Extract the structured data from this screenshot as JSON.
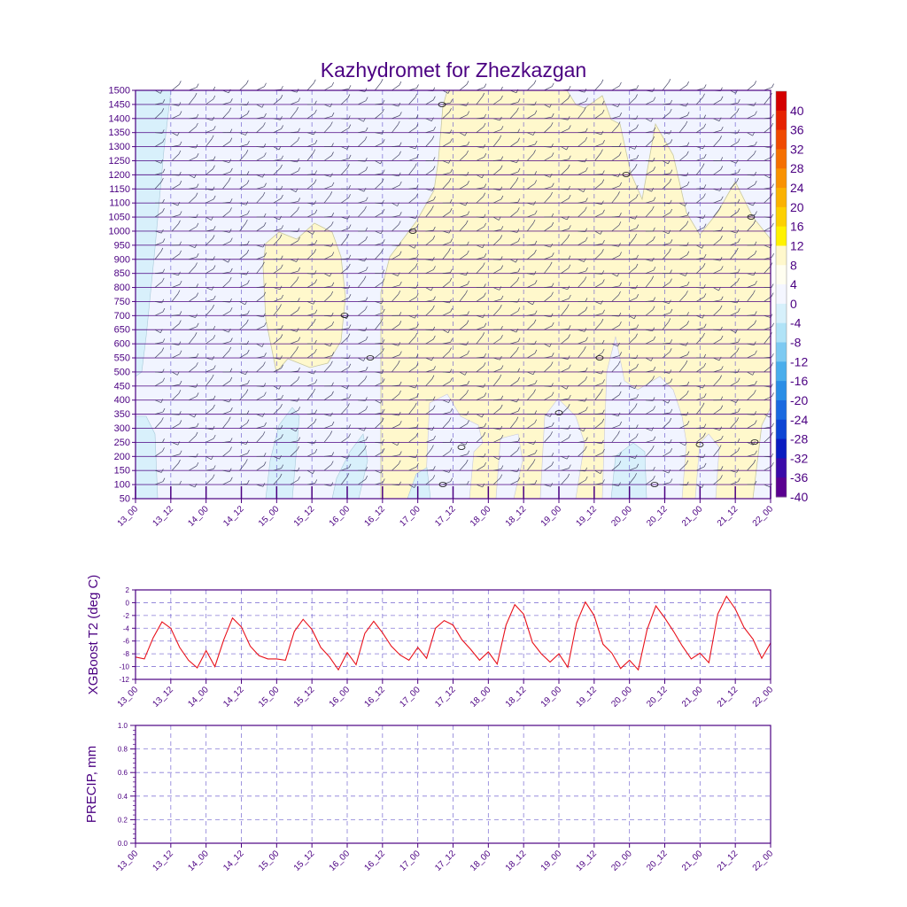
{
  "title": "Kazhydromet for Zhezkazgan",
  "colors": {
    "axis": "#4b0082",
    "label": "#4b0082",
    "grid": "#6a5acd",
    "t2_line": "#e8101a",
    "warm_fill": "#fff8cc",
    "cold_fill": "#f1f4ff",
    "colder_fill": "#d8f0fb",
    "coldest_fill": "#bfe6f7"
  },
  "colorbar": {
    "labels": [
      "40",
      "36",
      "32",
      "28",
      "24",
      "20",
      "16",
      "12",
      "8",
      "4",
      "0",
      "-4",
      "-8",
      "-12",
      "-16",
      "-20",
      "-24",
      "-28",
      "-32",
      "-36",
      "-40"
    ],
    "colors": [
      "#d40000",
      "#e62200",
      "#f04a00",
      "#f57000",
      "#f99200",
      "#fbb200",
      "#fdd000",
      "#fff200",
      "#fff8cc",
      "#fffef0",
      "#f4f6ff",
      "#d6f0fb",
      "#b0e3f7",
      "#7dcaf2",
      "#4aaeec",
      "#2a8ee6",
      "#1a6ae0",
      "#0d45d4",
      "#0a1cc0",
      "#3a0aa8",
      "#5a0090"
    ]
  },
  "time_labels": [
    "13_00",
    "13_12",
    "14_00",
    "14_12",
    "15_00",
    "15_12",
    "16_00",
    "16_12",
    "17_00",
    "17_12",
    "18_00",
    "18_12",
    "19_00",
    "19_12",
    "20_00",
    "20_12",
    "21_00",
    "21_12",
    "22_00"
  ],
  "chart_data": [
    {
      "type": "heatmap",
      "title": "Kazhydromet for Zhezkazgan",
      "ylabel": "",
      "x": [
        "13_00",
        "13_12",
        "14_00",
        "14_12",
        "15_00",
        "15_12",
        "16_00",
        "16_12",
        "17_00",
        "17_12",
        "18_00",
        "18_12",
        "19_00",
        "19_12",
        "20_00",
        "20_12",
        "21_00",
        "21_12",
        "22_00"
      ],
      "y_levels": [
        "1500",
        "1450",
        "1400",
        "1350",
        "1300",
        "1250",
        "1200",
        "1150",
        "1100",
        "1050",
        "1000",
        "950",
        "900",
        "850",
        "800",
        "750",
        "700",
        "650",
        "600",
        "550",
        "500",
        "450",
        "400",
        "350",
        "300",
        "250",
        "200",
        "150",
        "100",
        "50"
      ],
      "colorbar_range": [
        -40,
        40
      ]
    },
    {
      "type": "line",
      "ylabel": "XGBoost T2 (deg C)",
      "ylim": [
        -12,
        2
      ],
      "yticks": [
        "2",
        "0",
        "-2",
        "-4",
        "-6",
        "-8",
        "-10",
        "-12"
      ],
      "grid": true,
      "series": [
        {
          "values": [
            -8.5,
            -8.8,
            -5.5,
            -3.0,
            -4.0,
            -7.0,
            -9.0,
            -10.2,
            -7.5,
            -10.0,
            -5.8,
            -2.4,
            -3.8,
            -6.8,
            -8.3,
            -8.8,
            -8.8,
            -9.0,
            -4.5,
            -2.6,
            -4.2,
            -7.0,
            -8.5,
            -10.5,
            -7.8,
            -9.7,
            -4.8,
            -2.9,
            -4.7,
            -6.8,
            -8.2,
            -9.0,
            -7.0,
            -8.7,
            -4.0,
            -2.8,
            -3.5,
            -5.8,
            -7.3,
            -9.0,
            -7.7,
            -9.6,
            -3.5,
            -0.3,
            -1.8,
            -6.2,
            -8.0,
            -9.3,
            -8.0,
            -10.1,
            -3.2,
            0.1,
            -2.0,
            -6.5,
            -7.9,
            -10.3,
            -9.0,
            -10.5,
            -4.2,
            -0.5,
            -2.4,
            -4.5,
            -6.8,
            -8.8,
            -7.9,
            -9.4,
            -1.8,
            1.0,
            -1.0,
            -3.9,
            -5.7,
            -8.7,
            -6.3
          ]
        }
      ]
    },
    {
      "type": "line",
      "ylabel": "PRECIP, mm",
      "ylim": [
        0,
        1
      ],
      "yticks": [
        "1.0",
        "0.8",
        "0.6",
        "0.4",
        "0.2",
        "0.0"
      ],
      "grid": true,
      "series": [
        {
          "values": []
        }
      ]
    }
  ]
}
